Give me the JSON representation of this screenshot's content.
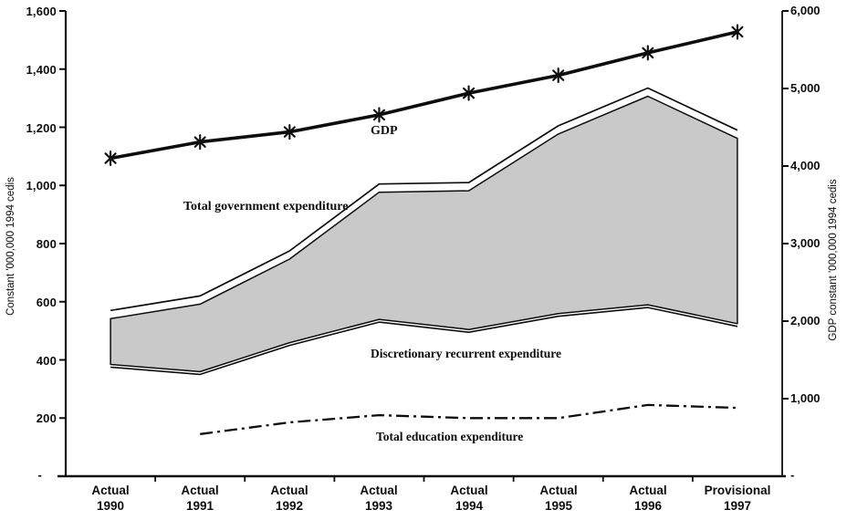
{
  "colors": {
    "ink": "#0d0d0d",
    "band_fill": "#c9c9c9",
    "background": "#ffffff"
  },
  "chart_data": {
    "type": "area",
    "title": "",
    "categories": [
      "Actual 1990",
      "Actual 1991",
      "Actual 1992",
      "Actual 1993",
      "Actual 1994",
      "Actual 1995",
      "Actual 1996",
      "Provisional 1997"
    ],
    "x_labels": [
      {
        "line1": "Actual",
        "line2": "1990"
      },
      {
        "line1": "Actual",
        "line2": "1991"
      },
      {
        "line1": "Actual",
        "line2": "1992"
      },
      {
        "line1": "Actual",
        "line2": "1993"
      },
      {
        "line1": "Actual",
        "line2": "1994"
      },
      {
        "line1": "Actual",
        "line2": "1995"
      },
      {
        "line1": "Actual",
        "line2": "1996"
      },
      {
        "line1": "Provisional",
        "line2": "1997"
      }
    ],
    "left_axis": {
      "label": "Constant '000,000 1994 cedis",
      "range": [
        0,
        1600
      ],
      "ticks": [
        "1,600",
        "1,400",
        "1,200",
        "1,000",
        "800",
        "600",
        "400",
        "200",
        "-"
      ]
    },
    "right_axis": {
      "label": "GDP constant '000,000 1994 cedis",
      "range": [
        0,
        6000
      ],
      "ticks": [
        "6,000",
        "5,000",
        "4,000",
        "3,000",
        "2,000",
        "1,000",
        "-"
      ]
    },
    "grid": false,
    "legend": "none (inline annotations)",
    "series": [
      {
        "id": "gdp",
        "name": "GDP",
        "axis": "right",
        "type": "line",
        "marker": "asterisk",
        "line_width": "thick",
        "values": [
          4100,
          4310,
          4440,
          4660,
          4940,
          5170,
          5460,
          5730
        ]
      },
      {
        "id": "tge",
        "name": "Total government expenditure",
        "axis": "left",
        "type": "line",
        "marker": "none",
        "line_width": "thin",
        "values": [
          570,
          620,
          775,
          1005,
          1010,
          1205,
          1335,
          1190
        ]
      },
      {
        "id": "dre",
        "name": "Discretionary recurrent expenditure",
        "axis": "left",
        "type": "line",
        "marker": "none",
        "line_width": "thin",
        "values": [
          375,
          350,
          450,
          530,
          495,
          550,
          580,
          515
        ]
      },
      {
        "id": "tee",
        "name": "Total education expenditure",
        "axis": "left",
        "type": "line",
        "marker": "none",
        "line_style": "dash-dot",
        "values": [
          null,
          145,
          185,
          210,
          200,
          200,
          245,
          235
        ]
      }
    ],
    "band": {
      "fill_between": [
        "Total government expenditure",
        "Discretionary recurrent expenditure"
      ],
      "fill_color": "#c9c9c9"
    },
    "annotations": [
      {
        "id": "gdp",
        "text": "GDP"
      },
      {
        "id": "tge",
        "text": "Total government expenditure"
      },
      {
        "id": "dre",
        "text": "Discretionary recurrent expenditure"
      },
      {
        "id": "tee",
        "text": "Total education expenditure"
      }
    ]
  }
}
